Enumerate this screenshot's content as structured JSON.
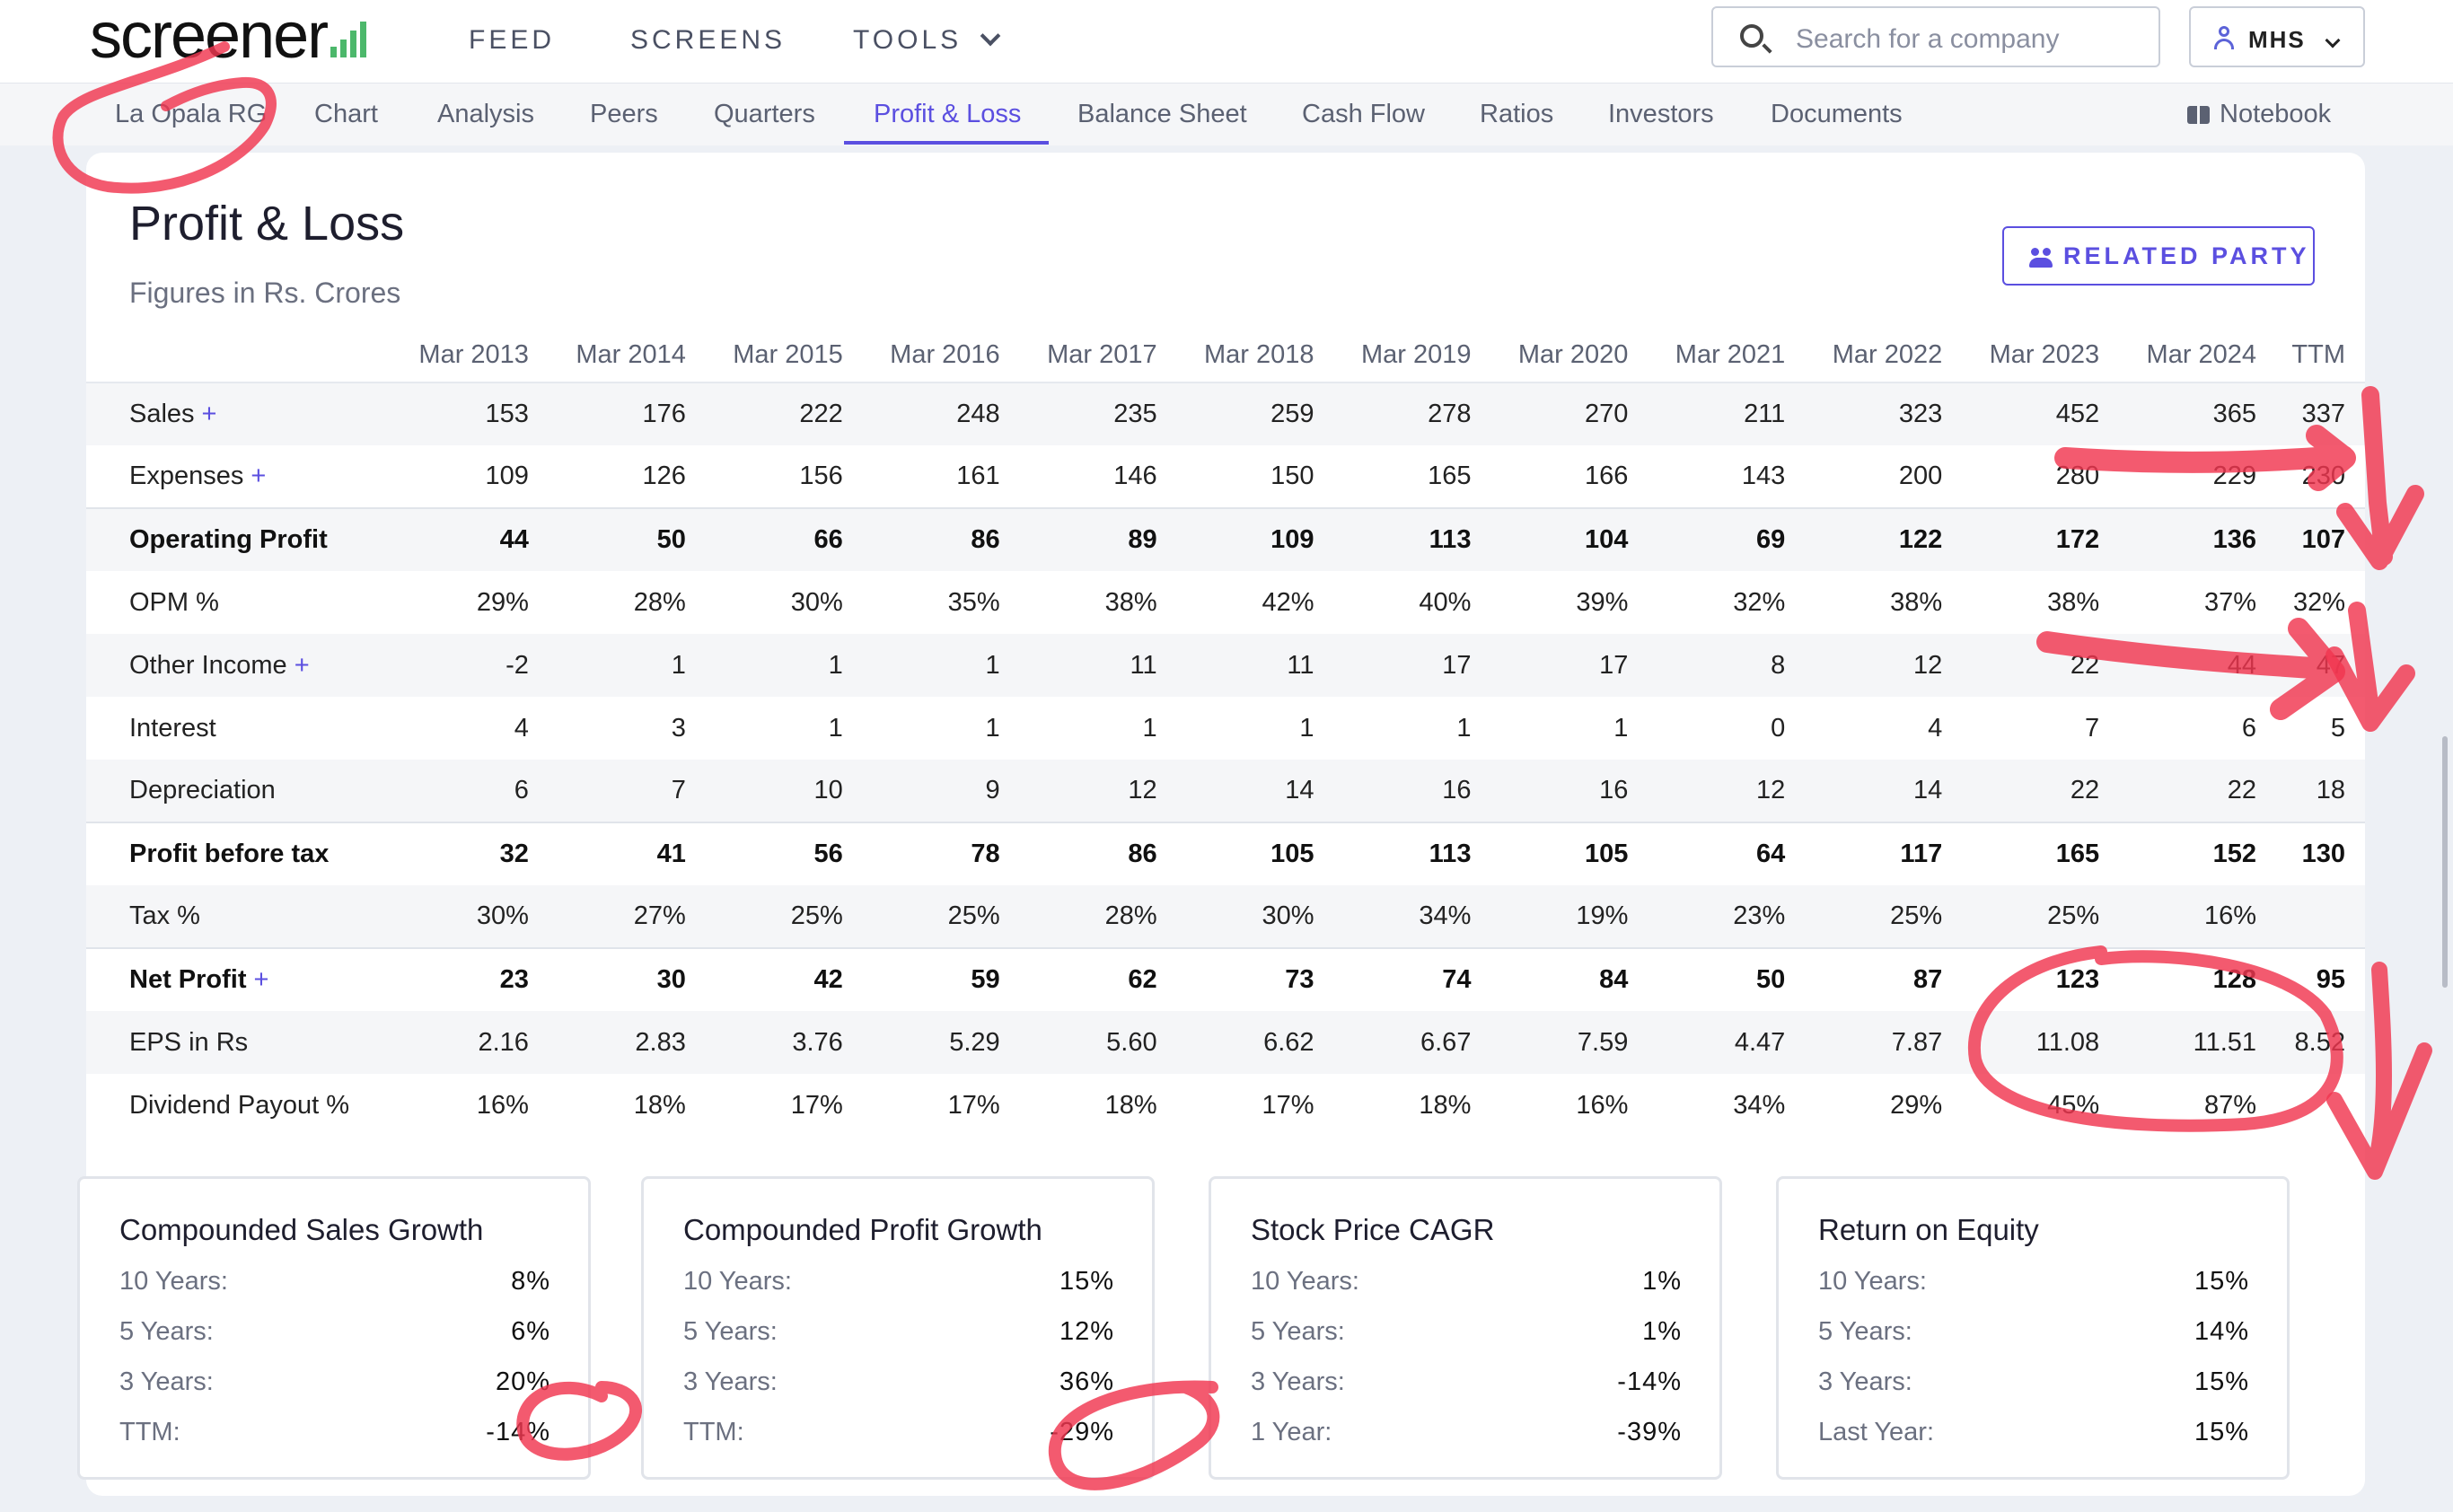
{
  "header": {
    "logo_text": "screener",
    "nav": [
      "FEED",
      "SCREENS",
      "TOOLS"
    ],
    "search_placeholder": "Search for a company",
    "user": "MHS"
  },
  "subnav": {
    "company": "La Opala RG",
    "items": [
      "Chart",
      "Analysis",
      "Peers",
      "Quarters",
      "Profit & Loss",
      "Balance Sheet",
      "Cash Flow",
      "Ratios",
      "Investors",
      "Documents"
    ],
    "active": "Profit & Loss",
    "notebook": "Notebook"
  },
  "section": {
    "title": "Profit & Loss",
    "subtitle": "Figures in Rs. Crores",
    "related_party": "RELATED PARTY"
  },
  "table": {
    "columns": [
      "Mar 2013",
      "Mar 2014",
      "Mar 2015",
      "Mar 2016",
      "Mar 2017",
      "Mar 2018",
      "Mar 2019",
      "Mar 2020",
      "Mar 2021",
      "Mar 2022",
      "Mar 2023",
      "Mar 2024",
      "TTM"
    ],
    "rows": [
      {
        "label": "Sales",
        "plus": "+",
        "values": [
          "153",
          "176",
          "222",
          "248",
          "235",
          "259",
          "278",
          "270",
          "211",
          "323",
          "452",
          "365",
          "337"
        ]
      },
      {
        "label": "Expenses",
        "plus": "+",
        "values": [
          "109",
          "126",
          "156",
          "161",
          "146",
          "150",
          "165",
          "166",
          "143",
          "200",
          "280",
          "229",
          "230"
        ]
      },
      {
        "label": "Operating Profit",
        "values": [
          "44",
          "50",
          "66",
          "86",
          "89",
          "109",
          "113",
          "104",
          "69",
          "122",
          "172",
          "136",
          "107"
        ]
      },
      {
        "label": "OPM %",
        "values": [
          "29%",
          "28%",
          "30%",
          "35%",
          "38%",
          "42%",
          "40%",
          "39%",
          "32%",
          "38%",
          "38%",
          "37%",
          "32%"
        ]
      },
      {
        "label": "Other Income",
        "plus": "+",
        "values": [
          "-2",
          "1",
          "1",
          "1",
          "11",
          "11",
          "17",
          "17",
          "8",
          "12",
          "22",
          "44",
          "47"
        ]
      },
      {
        "label": "Interest",
        "values": [
          "4",
          "3",
          "1",
          "1",
          "1",
          "1",
          "1",
          "1",
          "0",
          "4",
          "7",
          "6",
          "5"
        ]
      },
      {
        "label": "Depreciation",
        "values": [
          "6",
          "7",
          "10",
          "9",
          "12",
          "14",
          "16",
          "16",
          "12",
          "14",
          "22",
          "22",
          "18"
        ]
      },
      {
        "label": "Profit before tax",
        "values": [
          "32",
          "41",
          "56",
          "78",
          "86",
          "105",
          "113",
          "105",
          "64",
          "117",
          "165",
          "152",
          "130"
        ]
      },
      {
        "label": "Tax %",
        "values": [
          "30%",
          "27%",
          "25%",
          "25%",
          "28%",
          "30%",
          "34%",
          "19%",
          "23%",
          "25%",
          "25%",
          "16%",
          ""
        ]
      },
      {
        "label": "Net Profit",
        "plus": "+",
        "values": [
          "23",
          "30",
          "42",
          "59",
          "62",
          "73",
          "74",
          "84",
          "50",
          "87",
          "123",
          "128",
          "95"
        ]
      },
      {
        "label": "EPS in Rs",
        "values": [
          "2.16",
          "2.83",
          "3.76",
          "5.29",
          "5.60",
          "6.62",
          "6.67",
          "7.59",
          "4.47",
          "7.87",
          "11.08",
          "11.51",
          "8.52"
        ]
      },
      {
        "label": "Dividend Payout %",
        "values": [
          "16%",
          "18%",
          "17%",
          "17%",
          "18%",
          "17%",
          "18%",
          "16%",
          "34%",
          "29%",
          "45%",
          "87%",
          ""
        ]
      }
    ]
  },
  "growth": [
    {
      "title": "Compounded Sales Growth",
      "rows": [
        [
          "10 Years:",
          "8%"
        ],
        [
          "5 Years:",
          "6%"
        ],
        [
          "3 Years:",
          "20%"
        ],
        [
          "TTM:",
          "-14%"
        ]
      ]
    },
    {
      "title": "Compounded Profit Growth",
      "rows": [
        [
          "10 Years:",
          "15%"
        ],
        [
          "5 Years:",
          "12%"
        ],
        [
          "3 Years:",
          "36%"
        ],
        [
          "TTM:",
          "-29%"
        ]
      ]
    },
    {
      "title": "Stock Price CAGR",
      "rows": [
        [
          "10 Years:",
          "1%"
        ],
        [
          "5 Years:",
          "1%"
        ],
        [
          "3 Years:",
          "-14%"
        ],
        [
          "1 Year:",
          "-39%"
        ]
      ]
    },
    {
      "title": "Return on Equity",
      "rows": [
        [
          "10 Years:",
          "15%"
        ],
        [
          "5 Years:",
          "14%"
        ],
        [
          "3 Years:",
          "15%"
        ],
        [
          "Last Year:",
          "15%"
        ]
      ]
    }
  ],
  "colors": {
    "accent": "#5b4fe0",
    "logo_bars": "#4cb86b",
    "annotation_ink": "#f0364f"
  }
}
